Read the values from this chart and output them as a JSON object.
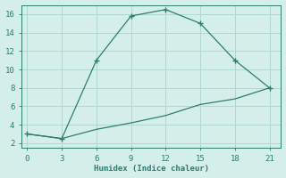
{
  "xlabel": "Humidex (Indice chaleur)",
  "line1_x": [
    0,
    3,
    6,
    9,
    12,
    15,
    18,
    21
  ],
  "line1_y": [
    3,
    2.5,
    11,
    15.8,
    16.5,
    15,
    11,
    8
  ],
  "line2_x": [
    0,
    3,
    6,
    9,
    12,
    15,
    18,
    21
  ],
  "line2_y": [
    3,
    2.5,
    3.5,
    4.2,
    5.0,
    6.2,
    6.8,
    8
  ],
  "color": "#2e7d6e",
  "bg_color": "#d4eeea",
  "grid_color": "#afd8d0",
  "xlim": [
    -0.5,
    22
  ],
  "ylim": [
    1.5,
    17
  ],
  "xticks": [
    0,
    3,
    6,
    9,
    12,
    15,
    18,
    21
  ],
  "yticks": [
    2,
    4,
    6,
    8,
    10,
    12,
    14,
    16
  ]
}
